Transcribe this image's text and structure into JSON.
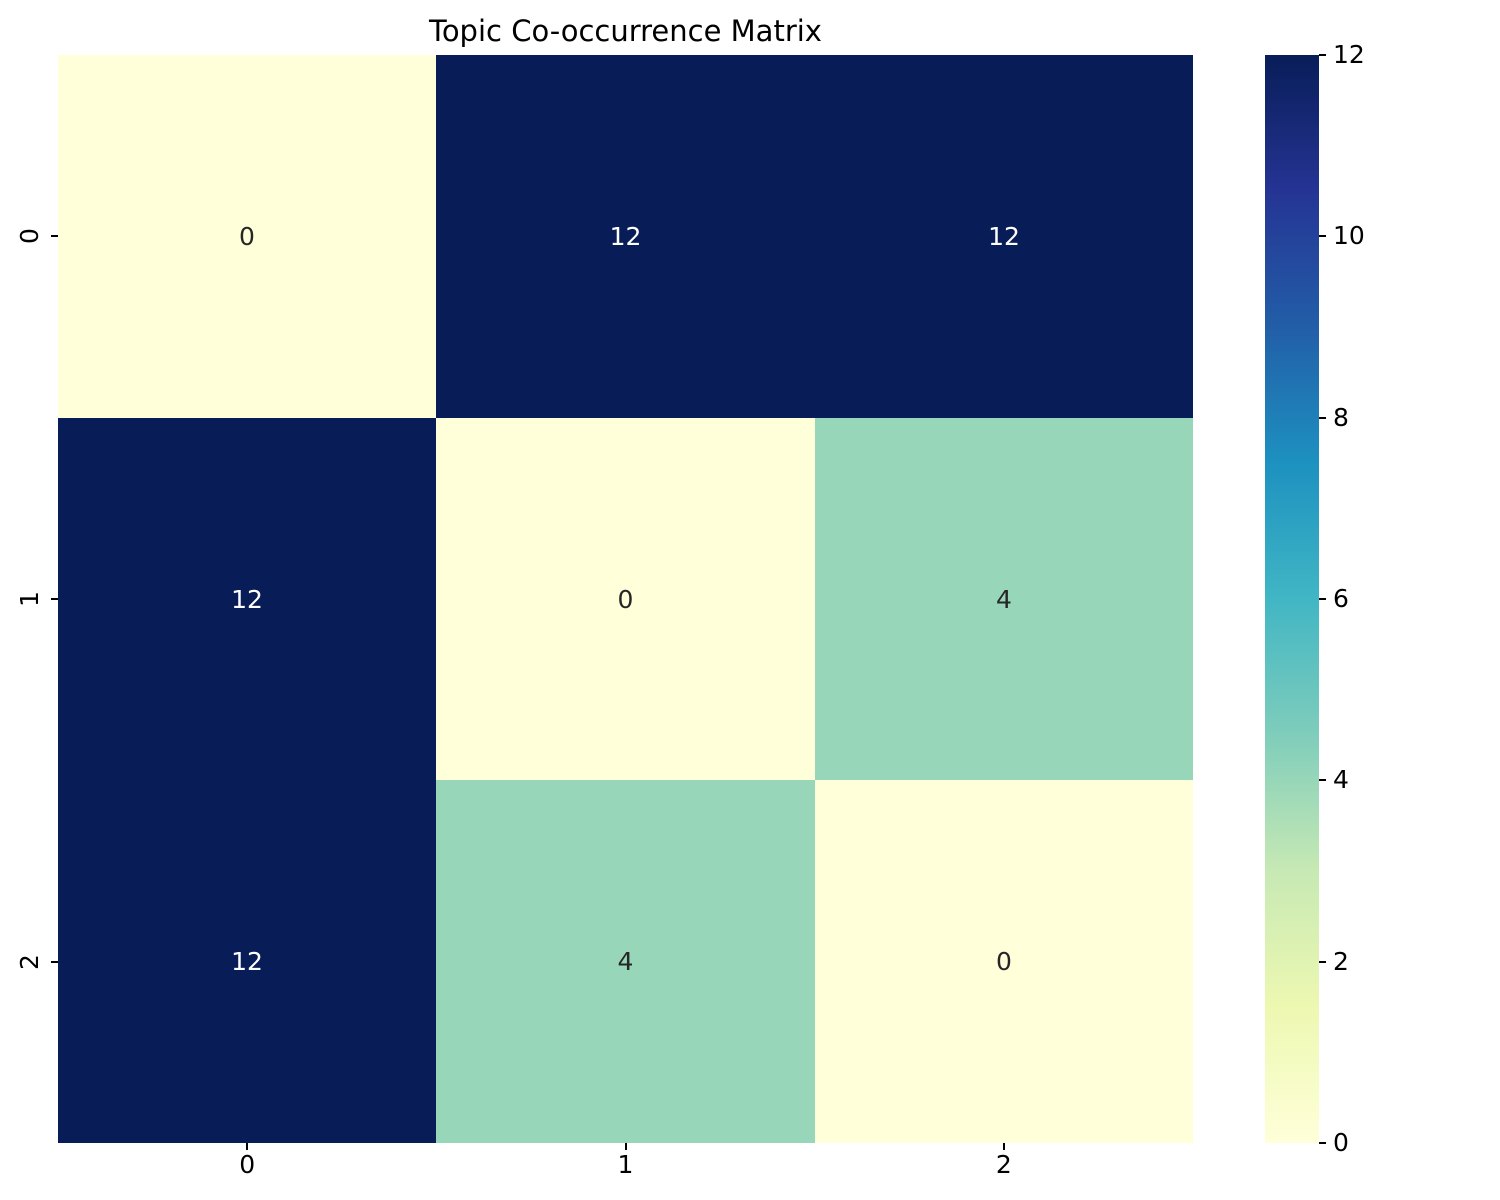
{
  "chart_data": {
    "type": "heatmap",
    "title": "Topic Co-occurrence Matrix",
    "x_tick_labels": [
      "0",
      "1",
      "2"
    ],
    "y_tick_labels": [
      "0",
      "1",
      "2"
    ],
    "matrix": [
      [
        0,
        12,
        12
      ],
      [
        12,
        0,
        4
      ],
      [
        12,
        4,
        0
      ]
    ],
    "vmin": 0,
    "vmax": 12,
    "colorbar_tick_labels": [
      "0",
      "2",
      "4",
      "6",
      "8",
      "10",
      "12"
    ],
    "colorbar_tick_values": [
      0,
      2,
      4,
      6,
      8,
      10,
      12
    ],
    "colormap": "YlGnBu",
    "colormap_stops": [
      "#ffffd9",
      "#edf8b1",
      "#c7e9b4",
      "#7fcdbb",
      "#41b6c4",
      "#1d91c0",
      "#225ea8",
      "#253494",
      "#081d58"
    ],
    "annotation_color_on_dark": "#ffffff",
    "annotation_color_on_light": "#262626",
    "background_color": "#ffffff",
    "legend_position": "right-colorbar",
    "grid": false,
    "xlabel": "",
    "ylabel": ""
  }
}
